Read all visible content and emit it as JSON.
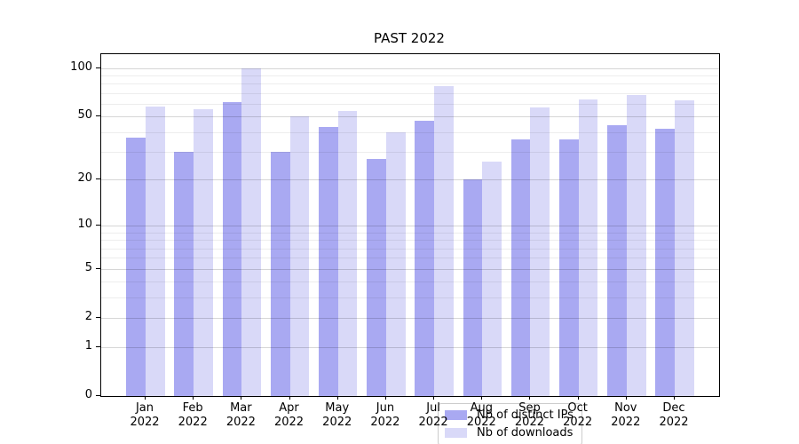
{
  "chart_data": {
    "type": "bar",
    "title": "PAST 2022",
    "categories": [
      "Jan 2022",
      "Feb 2022",
      "Mar 2022",
      "Apr 2022",
      "May 2022",
      "Jun 2022",
      "Jul 2022",
      "Aug 2022",
      "Sep 2022",
      "Oct 2022",
      "Nov 2022",
      "Dec 2022"
    ],
    "series": [
      {
        "name": "Nb of distinct IPs",
        "color": "#a9a9f2",
        "values": [
          37,
          30,
          62,
          30,
          43,
          27,
          47,
          20,
          36,
          36,
          44,
          42
        ]
      },
      {
        "name": "Nb of downloads",
        "color": "#d9d9f8",
        "values": [
          58,
          56,
          100,
          50,
          54,
          40,
          77,
          26,
          57,
          64,
          68,
          63
        ]
      }
    ],
    "xlabel": "",
    "ylabel": "",
    "yscale": "log1p",
    "ylim": [
      0,
      122
    ],
    "yticks": [
      0,
      1,
      2,
      5,
      10,
      20,
      50,
      100
    ],
    "yticks_minor": [
      3,
      4,
      6,
      7,
      8,
      9,
      30,
      40,
      60,
      70,
      80,
      90
    ],
    "grid": "horizontal",
    "legend_position": "lower-center-inside",
    "colors": {
      "grid_major": "rgba(0,0,0,0.16)",
      "grid_minor": "rgba(0,0,0,0.07)",
      "axis": "#000000",
      "background": "#ffffff"
    }
  }
}
